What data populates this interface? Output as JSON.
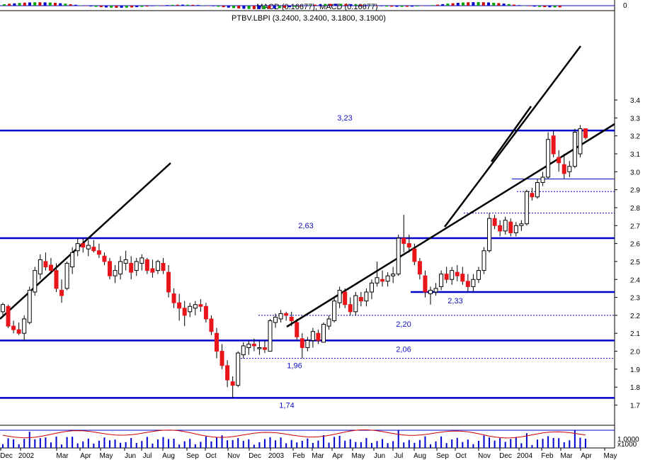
{
  "macd_panel": {
    "label": "MACD (0.16677), MACD (0.16677)",
    "axis_label": "0"
  },
  "volume_panel": {
    "label": "1.0000",
    "multiplier_label": "x1000"
  },
  "colors": {
    "level_line": "#0000cc",
    "trendline": "#000000",
    "down_candle": "#e8151b",
    "up_candle": "#ffffff",
    "candle_outline": "#000000",
    "level_text": "#1010c8",
    "volume_bar": "#0000cc",
    "oscillator_line": "#cc0000"
  },
  "chart_data": {
    "type": "candlestick",
    "title": "PTBV.LBPI (3.2400, 3.2400, 3.1800, 3.1900)",
    "ylim": [
      1.66,
      3.46
    ],
    "y_ticks": [
      "1.7",
      "1.8",
      "1.9",
      "2.0",
      "2.1",
      "2.2",
      "2.3",
      "2.4",
      "2.5",
      "2.6",
      "2.7",
      "2.8",
      "2.9",
      "3.0",
      "3.1",
      "3.2",
      "3.3",
      "3.4"
    ],
    "x_ticks": [
      "Dec",
      "2002",
      "Mar",
      "Apr",
      "May",
      "Jun",
      "Jul",
      "Aug",
      "Sep",
      "Oct",
      "Nov",
      "Dec",
      "2003",
      "Feb",
      "Mar",
      "Apr",
      "May",
      "Jun",
      "Jul",
      "Aug",
      "Sep",
      "Oct",
      "Nov",
      "Dec",
      "2004",
      "Feb",
      "Mar",
      "Apr",
      "May"
    ],
    "levels": [
      {
        "value": 3.23,
        "label": "3,23"
      },
      {
        "value": 2.63,
        "label": "2,63"
      },
      {
        "value": 2.06,
        "label": "2,06"
      },
      {
        "value": 1.74,
        "label": "1,74"
      }
    ],
    "short_levels": [
      {
        "value": 2.33,
        "label": "2,33"
      },
      {
        "value": 2.96,
        "label": ""
      }
    ],
    "dotted_levels": [
      2.2,
      1.96,
      2.77,
      2.89
    ],
    "annotations": [
      {
        "value": 2.2,
        "label": "2,20"
      },
      {
        "value": 1.96,
        "label": "1,96"
      }
    ],
    "ohlc": [
      [
        2.22,
        2.27,
        2.19,
        2.26
      ],
      [
        2.25,
        2.26,
        2.13,
        2.14
      ],
      [
        2.14,
        2.17,
        2.1,
        2.12
      ],
      [
        2.12,
        2.16,
        2.09,
        2.1
      ],
      [
        2.1,
        2.2,
        2.06,
        2.18
      ],
      [
        2.16,
        2.36,
        2.15,
        2.34
      ],
      [
        2.33,
        2.47,
        2.31,
        2.45
      ],
      [
        2.43,
        2.54,
        2.4,
        2.51
      ],
      [
        2.5,
        2.55,
        2.45,
        2.47
      ],
      [
        2.48,
        2.52,
        2.43,
        2.45
      ],
      [
        2.45,
        2.49,
        2.33,
        2.35
      ],
      [
        2.34,
        2.4,
        2.27,
        2.31
      ],
      [
        2.35,
        2.5,
        2.34,
        2.49
      ],
      [
        2.47,
        2.58,
        2.43,
        2.55
      ],
      [
        2.56,
        2.63,
        2.53,
        2.6
      ],
      [
        2.6,
        2.63,
        2.55,
        2.58
      ],
      [
        2.57,
        2.62,
        2.53,
        2.59
      ],
      [
        2.58,
        2.62,
        2.55,
        2.56
      ],
      [
        2.56,
        2.6,
        2.52,
        2.54
      ],
      [
        2.53,
        2.55,
        2.48,
        2.5
      ],
      [
        2.5,
        2.52,
        2.4,
        2.42
      ],
      [
        2.42,
        2.48,
        2.38,
        2.45
      ],
      [
        2.43,
        2.53,
        2.4,
        2.5
      ],
      [
        2.49,
        2.56,
        2.45,
        2.51
      ],
      [
        2.49,
        2.53,
        2.4,
        2.44
      ],
      [
        2.45,
        2.52,
        2.42,
        2.5
      ],
      [
        2.49,
        2.54,
        2.45,
        2.52
      ],
      [
        2.51,
        2.52,
        2.43,
        2.45
      ],
      [
        2.46,
        2.51,
        2.41,
        2.44
      ],
      [
        2.45,
        2.51,
        2.43,
        2.5
      ],
      [
        2.49,
        2.52,
        2.43,
        2.45
      ],
      [
        2.44,
        2.48,
        2.3,
        2.33
      ],
      [
        2.32,
        2.35,
        2.24,
        2.27
      ],
      [
        2.27,
        2.32,
        2.17,
        2.24
      ],
      [
        2.24,
        2.28,
        2.14,
        2.2
      ],
      [
        2.22,
        2.27,
        2.19,
        2.25
      ],
      [
        2.24,
        2.28,
        2.2,
        2.26
      ],
      [
        2.26,
        2.29,
        2.22,
        2.25
      ],
      [
        2.25,
        2.27,
        2.16,
        2.18
      ],
      [
        2.18,
        2.2,
        2.09,
        2.11
      ],
      [
        2.1,
        2.13,
        1.96,
        2.0
      ],
      [
        2.0,
        2.04,
        1.9,
        1.92
      ],
      [
        1.92,
        1.95,
        1.8,
        1.84
      ],
      [
        1.83,
        1.86,
        1.74,
        1.81
      ],
      [
        1.81,
        2.0,
        1.8,
        1.99
      ],
      [
        1.98,
        2.05,
        1.96,
        2.03
      ],
      [
        2.02,
        2.06,
        1.98,
        2.04
      ],
      [
        2.04,
        2.07,
        2.0,
        2.03
      ],
      [
        2.02,
        2.06,
        1.98,
        2.02
      ],
      [
        2.02,
        2.06,
        1.99,
        2.01
      ],
      [
        2.0,
        2.18,
        2.0,
        2.17
      ],
      [
        2.16,
        2.21,
        2.13,
        2.19
      ],
      [
        2.18,
        2.23,
        2.16,
        2.21
      ],
      [
        2.21,
        2.22,
        2.17,
        2.2
      ],
      [
        2.19,
        2.22,
        2.14,
        2.17
      ],
      [
        2.16,
        2.18,
        2.06,
        2.08
      ],
      [
        2.07,
        2.1,
        1.96,
        2.02
      ],
      [
        2.02,
        2.08,
        2.0,
        2.06
      ],
      [
        2.06,
        2.13,
        2.02,
        2.11
      ],
      [
        2.1,
        2.12,
        2.04,
        2.06
      ],
      [
        2.05,
        2.16,
        2.05,
        2.15
      ],
      [
        2.14,
        2.2,
        2.12,
        2.18
      ],
      [
        2.17,
        2.3,
        2.16,
        2.28
      ],
      [
        2.27,
        2.36,
        2.24,
        2.34
      ],
      [
        2.33,
        2.35,
        2.24,
        2.26
      ],
      [
        2.26,
        2.3,
        2.2,
        2.22
      ],
      [
        2.22,
        2.33,
        2.2,
        2.31
      ],
      [
        2.3,
        2.33,
        2.25,
        2.28
      ],
      [
        2.28,
        2.35,
        2.25,
        2.33
      ],
      [
        2.33,
        2.4,
        2.29,
        2.38
      ],
      [
        2.38,
        2.5,
        2.36,
        2.41
      ],
      [
        2.4,
        2.45,
        2.36,
        2.39
      ],
      [
        2.39,
        2.44,
        2.36,
        2.42
      ],
      [
        2.42,
        2.47,
        2.38,
        2.43
      ],
      [
        2.43,
        2.65,
        2.42,
        2.63
      ],
      [
        2.63,
        2.76,
        2.55,
        2.6
      ],
      [
        2.6,
        2.65,
        2.55,
        2.58
      ],
      [
        2.57,
        2.6,
        2.48,
        2.5
      ],
      [
        2.5,
        2.52,
        2.4,
        2.43
      ],
      [
        2.42,
        2.45,
        2.3,
        2.33
      ],
      [
        2.32,
        2.36,
        2.26,
        2.34
      ],
      [
        2.33,
        2.38,
        2.31,
        2.35
      ],
      [
        2.36,
        2.45,
        2.34,
        2.43
      ],
      [
        2.43,
        2.47,
        2.38,
        2.4
      ],
      [
        2.4,
        2.47,
        2.37,
        2.45
      ],
      [
        2.44,
        2.48,
        2.39,
        2.42
      ],
      [
        2.43,
        2.47,
        2.37,
        2.39
      ],
      [
        2.39,
        2.43,
        2.33,
        2.36
      ],
      [
        2.36,
        2.43,
        2.33,
        2.4
      ],
      [
        2.4,
        2.47,
        2.38,
        2.45
      ],
      [
        2.45,
        2.58,
        2.43,
        2.56
      ],
      [
        2.56,
        2.77,
        2.55,
        2.74
      ],
      [
        2.74,
        2.76,
        2.68,
        2.7
      ],
      [
        2.7,
        2.73,
        2.64,
        2.67
      ],
      [
        2.67,
        2.75,
        2.65,
        2.73
      ],
      [
        2.72,
        2.74,
        2.64,
        2.66
      ],
      [
        2.66,
        2.72,
        2.64,
        2.7
      ],
      [
        2.7,
        2.73,
        2.67,
        2.71
      ],
      [
        2.71,
        2.9,
        2.7,
        2.89
      ],
      [
        2.88,
        2.91,
        2.84,
        2.86
      ],
      [
        2.86,
        2.96,
        2.85,
        2.94
      ],
      [
        2.94,
        3.0,
        2.92,
        2.97
      ],
      [
        2.97,
        3.22,
        2.96,
        3.18
      ],
      [
        3.2,
        3.23,
        3.08,
        3.1
      ],
      [
        3.08,
        3.12,
        3.0,
        3.05
      ],
      [
        3.04,
        3.1,
        2.96,
        2.99
      ],
      [
        3.0,
        3.06,
        2.97,
        3.03
      ],
      [
        3.03,
        3.24,
        3.02,
        3.22
      ],
      [
        3.1,
        3.26,
        3.08,
        3.24
      ],
      [
        3.24,
        3.24,
        3.18,
        3.19
      ]
    ]
  }
}
